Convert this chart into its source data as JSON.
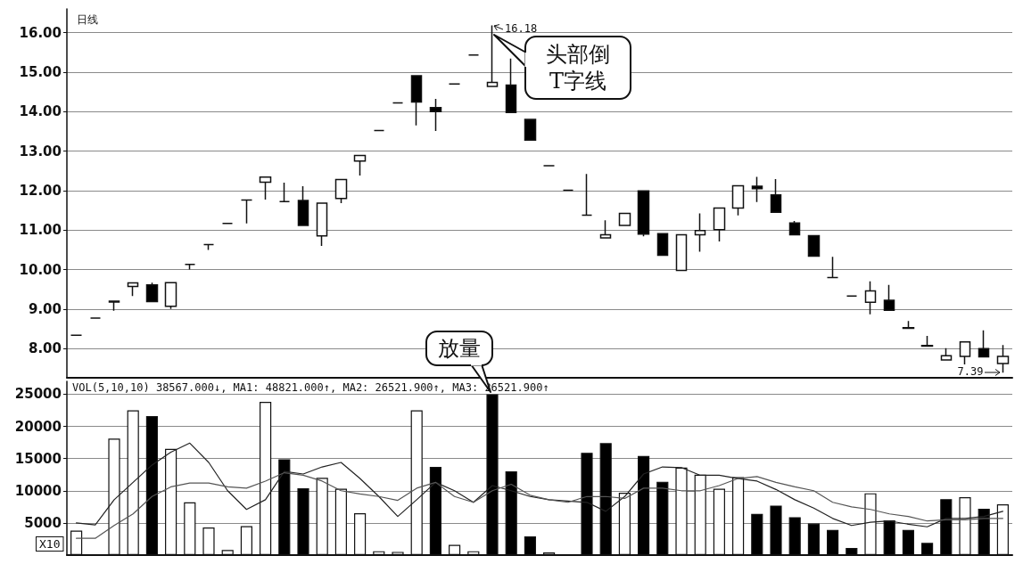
{
  "chart_data": [
    {
      "type": "candlestick",
      "title": "日线",
      "categories": [
        null,
        null,
        null,
        null,
        null,
        null,
        null,
        null,
        null,
        null,
        null,
        null,
        null,
        null,
        null,
        null,
        null,
        null,
        null,
        null,
        null,
        null,
        null,
        null,
        null,
        null,
        null,
        null,
        null,
        null,
        null,
        null,
        null,
        null,
        null,
        null,
        null,
        null,
        null,
        null,
        null,
        null,
        null,
        null,
        null,
        null,
        null,
        null,
        null,
        null
      ],
      "ohlc": [
        [
          8.34,
          8.34,
          8.34,
          8.34
        ],
        [
          8.77,
          8.77,
          8.77,
          8.77
        ],
        [
          9.18,
          9.2,
          8.96,
          9.2
        ],
        [
          9.57,
          9.66,
          9.33,
          9.66
        ],
        [
          9.61,
          9.67,
          9.19,
          9.19
        ],
        [
          9.07,
          9.67,
          9.0,
          9.67
        ],
        [
          10.13,
          10.13,
          10.0,
          10.13
        ],
        [
          10.63,
          10.63,
          10.5,
          10.63
        ],
        [
          11.17,
          11.17,
          11.17,
          11.17
        ],
        [
          11.76,
          11.76,
          11.17,
          11.76
        ],
        [
          12.21,
          12.34,
          11.77,
          12.34
        ],
        [
          11.72,
          12.2,
          11.72,
          11.72
        ],
        [
          11.75,
          12.11,
          11.12,
          11.12
        ],
        [
          10.85,
          11.68,
          10.6,
          11.68
        ],
        [
          11.8,
          12.28,
          11.68,
          12.28
        ],
        [
          12.75,
          12.89,
          12.38,
          12.89
        ],
        [
          13.52,
          13.52,
          13.52,
          13.52
        ],
        [
          14.22,
          14.22,
          14.22,
          14.22
        ],
        [
          14.91,
          14.91,
          13.65,
          14.24
        ],
        [
          14.1,
          14.32,
          13.51,
          14.0
        ],
        [
          14.7,
          14.7,
          14.7,
          14.7
        ],
        [
          15.43,
          15.43,
          15.43,
          15.43
        ],
        [
          14.64,
          16.18,
          14.64,
          14.74
        ],
        [
          14.67,
          15.34,
          13.98,
          13.98
        ],
        [
          13.8,
          13.8,
          13.28,
          13.28
        ],
        [
          12.63,
          12.63,
          12.63,
          12.63
        ],
        [
          12.01,
          12.01,
          12.01,
          12.01
        ],
        [
          11.38,
          12.42,
          11.38,
          11.38
        ],
        [
          10.8,
          11.25,
          10.8,
          10.88
        ],
        [
          11.12,
          11.42,
          11.12,
          11.42
        ],
        [
          11.99,
          11.99,
          10.84,
          10.9
        ],
        [
          10.91,
          10.91,
          10.36,
          10.36
        ],
        [
          9.98,
          10.88,
          9.98,
          10.88
        ],
        [
          10.88,
          11.42,
          10.45,
          10.99
        ],
        [
          11.01,
          11.56,
          10.71,
          11.56
        ],
        [
          11.56,
          12.12,
          11.37,
          12.12
        ],
        [
          12.11,
          12.35,
          11.71,
          12.05
        ],
        [
          11.89,
          12.29,
          11.45,
          11.45
        ],
        [
          11.18,
          11.23,
          10.88,
          10.88
        ],
        [
          10.86,
          10.86,
          10.34,
          10.34
        ],
        [
          9.8,
          10.32,
          9.8,
          9.8
        ],
        [
          9.33,
          9.33,
          9.33,
          9.33
        ],
        [
          9.17,
          9.7,
          8.87,
          9.46
        ],
        [
          9.22,
          9.61,
          8.97,
          8.97
        ],
        [
          8.53,
          8.7,
          8.51,
          8.51
        ],
        [
          8.08,
          8.32,
          8.06,
          8.06
        ],
        [
          7.71,
          8.01,
          7.7,
          7.82
        ],
        [
          7.8,
          8.17,
          7.6,
          8.17
        ],
        [
          8.0,
          8.46,
          7.79,
          7.79
        ],
        [
          7.62,
          8.09,
          7.39,
          7.8
        ]
      ],
      "colors": [
        "#111111",
        "#111111",
        "#ffffff",
        "#ffffff",
        "#000000",
        "#ffffff",
        "#111111",
        "#111111",
        "#111111",
        "#111111",
        "#ffffff",
        "#111111",
        "#000000",
        "#ffffff",
        "#ffffff",
        "#ffffff",
        "#111111",
        "#111111",
        "#000000",
        "#000000",
        "#111111",
        "#111111",
        "#ffffff",
        "#000000",
        "#000000",
        "#111111",
        "#111111",
        "#111111",
        "#ffffff",
        "#ffffff",
        "#000000",
        "#000000",
        "#ffffff",
        "#ffffff",
        "#ffffff",
        "#ffffff",
        "#000000",
        "#000000",
        "#000000",
        "#000000",
        "#111111",
        "#111111",
        "#ffffff",
        "#000000",
        "#000000",
        "#000000",
        "#ffffff",
        "#ffffff",
        "#000000",
        "#ffffff"
      ],
      "ylim": [
        7.26,
        16.6
      ],
      "yticks": [
        {
          "value": 8,
          "label": "8.00"
        },
        {
          "value": 9,
          "label": "9.00"
        },
        {
          "value": 10,
          "label": "10.00"
        },
        {
          "value": 11,
          "label": "11.00"
        },
        {
          "value": 12,
          "label": "12.00"
        },
        {
          "value": 13,
          "label": "13.00"
        },
        {
          "value": 14,
          "label": "14.00"
        },
        {
          "value": 15,
          "label": "15.00"
        },
        {
          "value": 16,
          "label": "16.00"
        }
      ],
      "grid": "y",
      "tick_labels": "y",
      "annotations": [
        "16.18",
        "7.39",
        "头部倒T字线"
      ]
    },
    {
      "type": "bar",
      "ylabel": "X10",
      "categories": [
        null,
        null,
        null,
        null,
        null,
        null,
        null,
        null,
        null,
        null,
        null,
        null,
        null,
        null,
        null,
        null,
        null,
        null,
        null,
        null,
        null,
        null,
        null,
        null,
        null,
        null,
        null,
        null,
        null,
        null,
        null,
        null,
        null,
        null,
        null,
        null,
        null,
        null,
        null,
        null,
        null,
        null,
        null,
        null,
        null,
        null,
        null,
        null,
        null,
        null
      ],
      "series": [
        {
          "type": "bar",
          "values": [
            3800,
            null,
            18100,
            22500,
            21600,
            16500,
            8200,
            4300,
            800,
            4500,
            23800,
            14900,
            10400,
            12000,
            10300,
            6500,
            600,
            500,
            22500,
            13700,
            1600,
            600,
            25000,
            13000,
            2900,
            400,
            null,
            15900,
            17400,
            9700,
            15400,
            11400,
            13600,
            12500,
            10300,
            12100,
            6400,
            7700,
            5900,
            4900,
            3900,
            1100,
            9600,
            5400,
            3900,
            1900,
            8700,
            9000,
            7200,
            7900
          ],
          "colors": [
            "#ffffff",
            "#ffffff",
            "#ffffff",
            "#ffffff",
            "#000000",
            "#ffffff",
            "#ffffff",
            "#ffffff",
            "#ffffff",
            "#ffffff",
            "#ffffff",
            "#000000",
            "#000000",
            "#ffffff",
            "#ffffff",
            "#ffffff",
            "#ffffff",
            "#ffffff",
            "#ffffff",
            "#000000",
            "#ffffff",
            "#ffffff",
            "#000000",
            "#000000",
            "#000000",
            "#ffffff",
            "#ffffff",
            "#000000",
            "#000000",
            "#ffffff",
            "#000000",
            "#000000",
            "#ffffff",
            "#ffffff",
            "#ffffff",
            "#ffffff",
            "#000000",
            "#000000",
            "#000000",
            "#000000",
            "#000000",
            "#000000",
            "#ffffff",
            "#000000",
            "#000000",
            "#000000",
            "#000000",
            "#ffffff",
            "#000000",
            "#ffffff"
          ]
        },
        {
          "type": "line",
          "color": "#222222",
          "values": [
            5000,
            4700,
            8600,
            11300,
            14000,
            16000,
            17400,
            14400,
            10000,
            7100,
            8600,
            13000,
            12600,
            13700,
            14400,
            11900,
            9100,
            6000,
            8600,
            11300,
            10000,
            8200,
            10800,
            10000,
            9100,
            8600,
            8400,
            8200,
            6800,
            9100,
            12600,
            13700,
            13600,
            12400,
            12400,
            11900,
            11500,
            10200,
            8600,
            7300,
            5700,
            4600,
            5100,
            5300,
            4800,
            4400,
            5700,
            5700,
            6000,
            6800
          ]
        },
        {
          "type": "line",
          "color": "#555555",
          "values": [
            2600,
            2600,
            4600,
            6400,
            9100,
            10600,
            11200,
            11200,
            10600,
            10400,
            11500,
            12800,
            12400,
            11500,
            10000,
            9500,
            9100,
            8500,
            10400,
            11300,
            9100,
            8200,
            10000,
            11000,
            9300,
            8600,
            8200,
            9100,
            9100,
            8800,
            10400,
            10400,
            10000,
            10000,
            10800,
            11900,
            12200,
            11300,
            10600,
            10000,
            8200,
            7500,
            7100,
            6400,
            6000,
            5300,
            5500,
            5500,
            5700,
            5700
          ]
        }
      ],
      "ylim": [
        0,
        27000
      ],
      "yticks": [
        5000,
        10000,
        15000,
        20000,
        25000
      ],
      "grid": "y",
      "tick_labels": "y",
      "annotations": [
        "VOL(5,10,10) 38567.000↓, MA1: 48821.000↑, MA2: 26521.900↑, MA3: 26521.900↑",
        "放量"
      ]
    }
  ]
}
